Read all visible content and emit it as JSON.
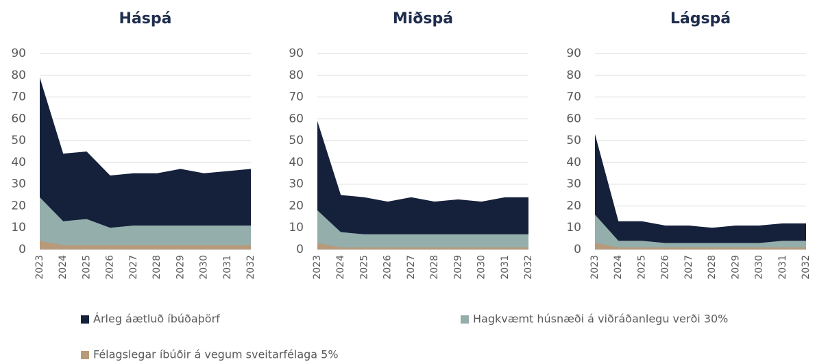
{
  "legend": {
    "items": [
      {
        "name": "Árleg áætluð íbúðaþörf",
        "color": "#15213b"
      },
      {
        "name": "Hagkvæmt húsnæði á viðráðanlegu verði 30%",
        "color": "#94aeac"
      },
      {
        "name": "Félagslegar íbúðir á vegum sveitarfélaga 5%",
        "color": "#b89a7a"
      }
    ]
  },
  "chart_data": [
    {
      "type": "area",
      "title": "Háspá",
      "categories": [
        "2023",
        "2024",
        "2025",
        "2026",
        "2027",
        "2028",
        "2029",
        "2030",
        "2031",
        "2032"
      ],
      "series": [
        {
          "values": [
            79,
            44,
            45,
            34,
            35,
            35,
            37,
            35,
            36,
            37
          ]
        },
        {
          "values": [
            24,
            13,
            14,
            10,
            11,
            11,
            11,
            11,
            11,
            11
          ]
        },
        {
          "values": [
            4,
            2,
            2,
            2,
            2,
            2,
            2,
            2,
            2,
            2
          ]
        }
      ],
      "ylim": [
        0,
        90
      ],
      "yticks": [
        0,
        10,
        20,
        30,
        40,
        50,
        60,
        70,
        80,
        90
      ],
      "grid": true
    },
    {
      "type": "area",
      "title": "Miðspá",
      "categories": [
        "2023",
        "2024",
        "2025",
        "2026",
        "2027",
        "2028",
        "2029",
        "2030",
        "2031",
        "2032"
      ],
      "series": [
        {
          "values": [
            59,
            25,
            24,
            22,
            24,
            22,
            23,
            22,
            24,
            24
          ]
        },
        {
          "values": [
            18,
            8,
            7,
            7,
            7,
            7,
            7,
            7,
            7,
            7
          ]
        },
        {
          "values": [
            3,
            1,
            1,
            1,
            1,
            1,
            1,
            1,
            1,
            1
          ]
        }
      ],
      "ylim": [
        0,
        90
      ],
      "yticks": [
        0,
        10,
        20,
        30,
        40,
        50,
        60,
        70,
        80,
        90
      ],
      "grid": true
    },
    {
      "type": "area",
      "title": "Lágspá",
      "categories": [
        "2023",
        "2024",
        "2025",
        "2026",
        "2027",
        "2028",
        "2029",
        "2030",
        "2031",
        "2032"
      ],
      "series": [
        {
          "values": [
            53,
            13,
            13,
            11,
            11,
            10,
            11,
            11,
            12,
            12
          ]
        },
        {
          "values": [
            16,
            4,
            4,
            3,
            3,
            3,
            3,
            3,
            4,
            4
          ]
        },
        {
          "values": [
            3,
            1,
            1,
            1,
            1,
            1,
            1,
            1,
            1,
            1
          ]
        }
      ],
      "ylim": [
        0,
        90
      ],
      "yticks": [
        0,
        10,
        20,
        30,
        40,
        50,
        60,
        70,
        80,
        90
      ],
      "grid": true
    }
  ]
}
